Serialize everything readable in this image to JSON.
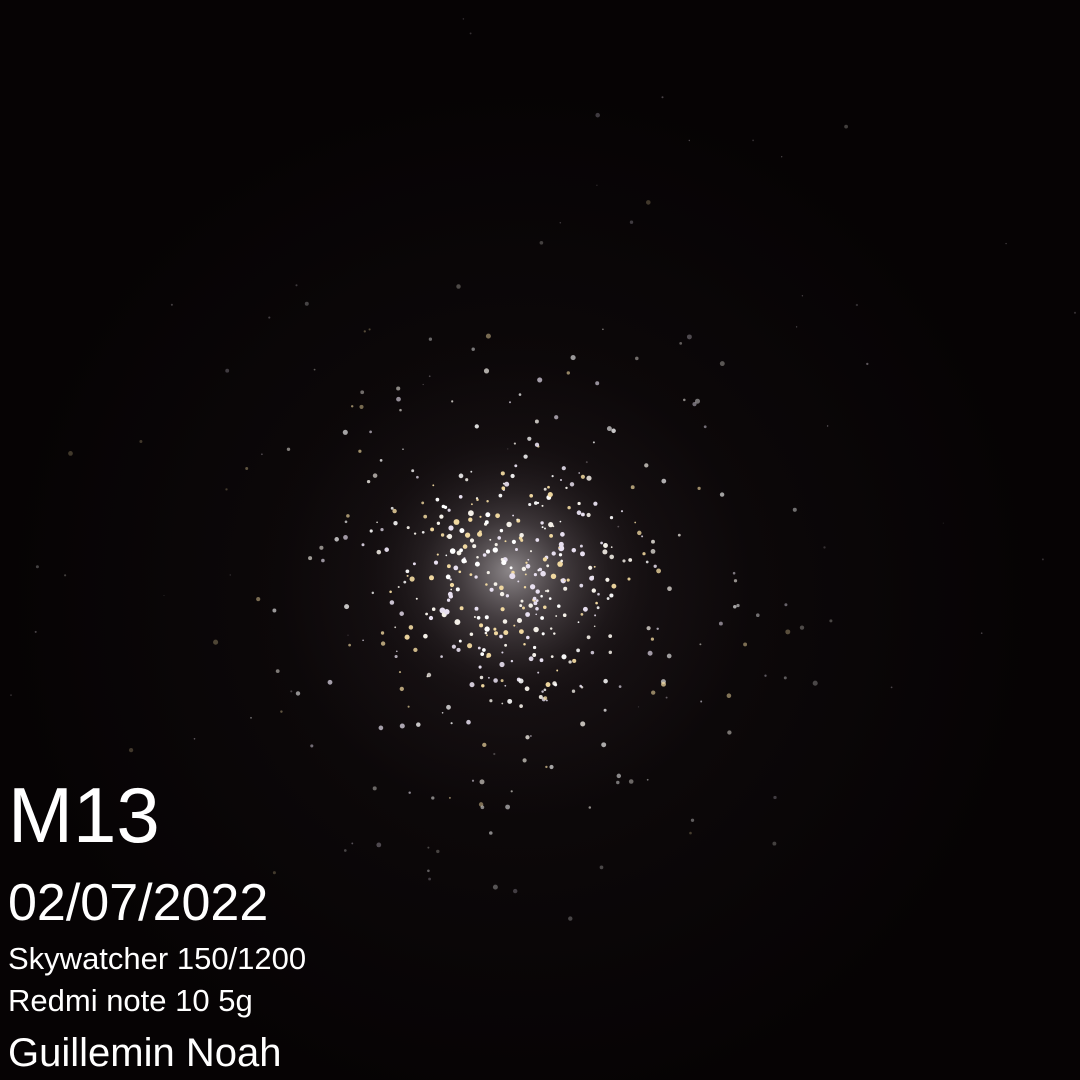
{
  "caption": {
    "object": "M13",
    "date": "02/07/2022",
    "telescope": "Skywatcher 150/1200",
    "camera": "Redmi note 10 5g",
    "author": "Guillemin Noah"
  },
  "colors": {
    "sky": "#060304",
    "cluster_glow": "#a09aa0",
    "star_white": "#f4f0e8",
    "star_warm": "#f0d8a0",
    "text": "#ffffff"
  }
}
